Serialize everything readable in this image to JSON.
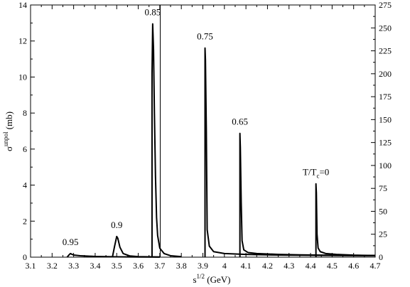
{
  "chart_data": {
    "type": "line",
    "xlabel": "s",
    "xlabel_sup": "1/2",
    "xlabel_unit": " (GeV)",
    "ylabel": "σ",
    "ylabel_sup": "unpol",
    "ylabel_unit": " (mb)",
    "xlim": [
      3.1,
      4.7
    ],
    "ylim_left": [
      0,
      14
    ],
    "ylim_right": [
      0,
      275
    ],
    "x_split": 3.7,
    "x_ticks": [
      "3.1",
      "3.2",
      "3.3",
      "3.4",
      "3.5",
      "3.6",
      "3.7",
      "3.8",
      "3.9",
      "4",
      "4.1",
      "4.2",
      "4.3",
      "4.4",
      "4.5",
      "4.6",
      "4.7"
    ],
    "y_ticks_left": [
      "0",
      "2",
      "4",
      "6",
      "8",
      "10",
      "12",
      "14"
    ],
    "y_ticks_right": [
      "0",
      "25",
      "50",
      "75",
      "100",
      "125",
      "150",
      "175",
      "200",
      "225",
      "250",
      "275"
    ],
    "grid": false,
    "series": [
      {
        "label": "0.95",
        "axis": "left",
        "x": [
          3.27,
          3.278,
          3.285,
          3.29,
          3.3,
          3.33,
          3.4,
          3.5,
          3.6,
          3.7
        ],
        "y": [
          0,
          0.12,
          0.2,
          0.17,
          0.12,
          0.08,
          0.04,
          0.02,
          0.01,
          0.005
        ]
      },
      {
        "label": "0.9",
        "axis": "left",
        "x": [
          3.48,
          3.49,
          3.5,
          3.505,
          3.515,
          3.53,
          3.56,
          3.6,
          3.65,
          3.7
        ],
        "y": [
          0,
          0.6,
          1.15,
          1.05,
          0.55,
          0.2,
          0.07,
          0.03,
          0.02,
          0.01
        ]
      },
      {
        "label": "0.85",
        "axis": "left",
        "x": [
          3.664,
          3.664,
          3.667,
          3.671,
          3.675,
          3.68,
          3.685,
          3.69,
          3.7,
          3.72,
          3.75,
          3.8
        ],
        "y": [
          0,
          10.2,
          12.95,
          11.5,
          8.0,
          4.5,
          2.2,
          1.2,
          0.5,
          0.2,
          0.08,
          0.03
        ]
      },
      {
        "label": "0.75",
        "axis": "right",
        "x": [
          3.91,
          3.91,
          3.912,
          3.916,
          3.92,
          3.93,
          3.95,
          4.0,
          4.1,
          4.2,
          4.3,
          4.4,
          4.5,
          4.6,
          4.7
        ],
        "y": [
          0,
          228,
          215,
          140,
          30,
          12,
          6,
          4,
          3,
          2.5,
          2.2,
          2,
          1.8,
          1.6,
          1.5
        ]
      },
      {
        "label": "0.65",
        "axis": "right",
        "x": [
          4.072,
          4.072,
          4.074,
          4.078,
          4.082,
          4.09,
          4.11,
          4.15,
          4.25,
          4.35,
          4.45,
          4.55,
          4.7
        ],
        "y": [
          0,
          135,
          120,
          60,
          18,
          8,
          5,
          4,
          3,
          2.5,
          2.2,
          2,
          1.8
        ]
      },
      {
        "label": "T/T",
        "label_sub": "c",
        "label_suffix": "=0",
        "axis": "right",
        "x": [
          4.425,
          4.425,
          4.427,
          4.43,
          4.435,
          4.445,
          4.47,
          4.52,
          4.6,
          4.7
        ],
        "y": [
          0,
          80,
          70,
          25,
          10,
          6,
          4,
          3,
          2.2,
          1.8
        ]
      }
    ]
  }
}
